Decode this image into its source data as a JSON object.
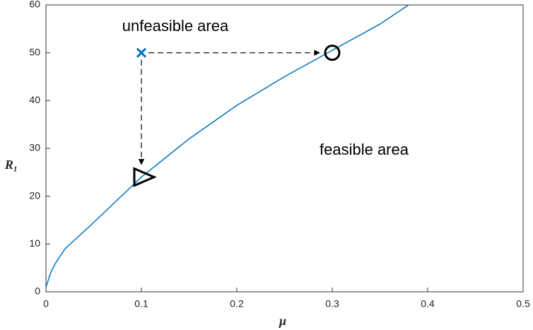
{
  "chart_data": {
    "type": "line",
    "x_label": "μ",
    "y_label": "R₁",
    "annotations": [
      "unfeasible area",
      "feasible area"
    ],
    "x": [
      0,
      0.005,
      0.01,
      0.02,
      0.05,
      0.1,
      0.15,
      0.2,
      0.25,
      0.3,
      0.35,
      0.38
    ],
    "series": [
      {
        "color": "#0072bd",
        "values": [
          1,
          4,
          6,
          9,
          14.5,
          24,
          32,
          39,
          45,
          50.5,
          56,
          60
        ]
      }
    ],
    "markers": [
      {
        "shape": "x",
        "x": 0.1,
        "y": 50,
        "color": "#0072bd"
      },
      {
        "shape": "circle",
        "x": 0.3,
        "y": 50,
        "color": "#000000"
      },
      {
        "shape": "triangle",
        "x": 0.1,
        "y": 24,
        "color": "#000000"
      }
    ],
    "xlim": [
      0,
      0.5
    ],
    "xticks": [
      0,
      0.1,
      0.2,
      0.3,
      0.4,
      0.5
    ],
    "ylim": [
      0,
      60
    ],
    "yticks": [
      0,
      10,
      20,
      30,
      40,
      50,
      60
    ]
  }
}
